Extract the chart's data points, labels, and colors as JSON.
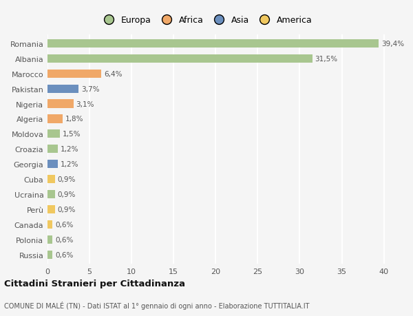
{
  "countries": [
    "Romania",
    "Albania",
    "Marocco",
    "Pakistan",
    "Nigeria",
    "Algeria",
    "Moldova",
    "Croazia",
    "Georgia",
    "Cuba",
    "Ucraina",
    "Perù",
    "Canada",
    "Polonia",
    "Russia"
  ],
  "values": [
    39.4,
    31.5,
    6.4,
    3.7,
    3.1,
    1.8,
    1.5,
    1.2,
    1.2,
    0.9,
    0.9,
    0.9,
    0.6,
    0.6,
    0.6
  ],
  "labels": [
    "39,4%",
    "31,5%",
    "6,4%",
    "3,7%",
    "3,1%",
    "1,8%",
    "1,5%",
    "1,2%",
    "1,2%",
    "0,9%",
    "0,9%",
    "0,9%",
    "0,6%",
    "0,6%",
    "0,6%"
  ],
  "continents": [
    "Europa",
    "Europa",
    "Africa",
    "Asia",
    "Africa",
    "Africa",
    "Europa",
    "Europa",
    "Asia",
    "America",
    "Europa",
    "America",
    "America",
    "Europa",
    "Europa"
  ],
  "colors": {
    "Europa": "#a8c68f",
    "Africa": "#f0a868",
    "Asia": "#6b8fbe",
    "America": "#f0c860"
  },
  "legend_order": [
    "Europa",
    "Africa",
    "Asia",
    "America"
  ],
  "title": "Cittadini Stranieri per Cittadinanza",
  "subtitle": "COMUNE DI MALÉ (TN) - Dati ISTAT al 1° gennaio di ogni anno - Elaborazione TUTTITALIA.IT",
  "xlim": [
    0,
    42
  ],
  "xticks": [
    0,
    5,
    10,
    15,
    20,
    25,
    30,
    35,
    40
  ],
  "bg_color": "#f5f5f5",
  "grid_color": "#ffffff",
  "bar_height": 0.55
}
